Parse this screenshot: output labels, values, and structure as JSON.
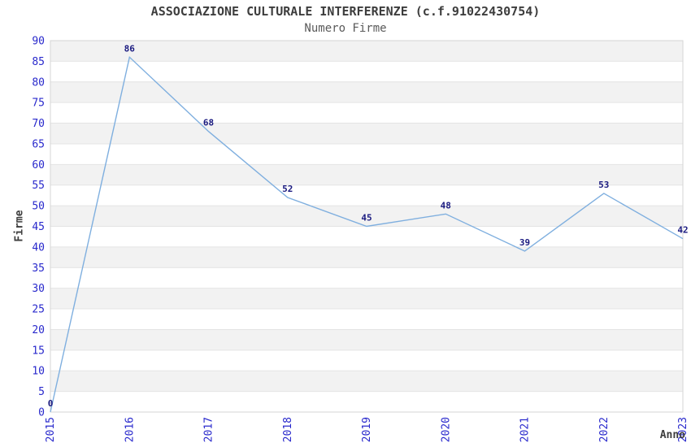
{
  "title": "ASSOCIAZIONE CULTURALE INTERFERENZE (c.f.91022430754)",
  "subtitle": "Numero Firme",
  "x_axis_title": "Anno",
  "y_axis_title": "Firme",
  "chart_data": {
    "type": "line",
    "x": [
      "2015",
      "2016",
      "2017",
      "2018",
      "2019",
      "2020",
      "2021",
      "2022",
      "2023"
    ],
    "values": [
      0,
      86,
      68,
      52,
      45,
      48,
      39,
      53,
      42
    ],
    "title": "ASSOCIAZIONE CULTURALE INTERFERENZE (c.f.91022430754)",
    "subtitle": "Numero Firme",
    "xlabel": "Anno",
    "ylabel": "Firme",
    "ylim": [
      0,
      90
    ],
    "ytick_step": 5,
    "grid": true,
    "legend_position": "none",
    "band_alternating": true,
    "data_labels_visible": true,
    "colors": {
      "line": "#7fafdf",
      "tick_label": "#2929cc",
      "data_label": "#1a1a80",
      "title": "#3d3d3d",
      "subtitle": "#5a5a5a",
      "axis_title": "#3d3d3d",
      "band": "#f2f2f2",
      "gridline": "#e4e4e4",
      "border": "#d6d6d6",
      "background": "#ffffff"
    }
  }
}
